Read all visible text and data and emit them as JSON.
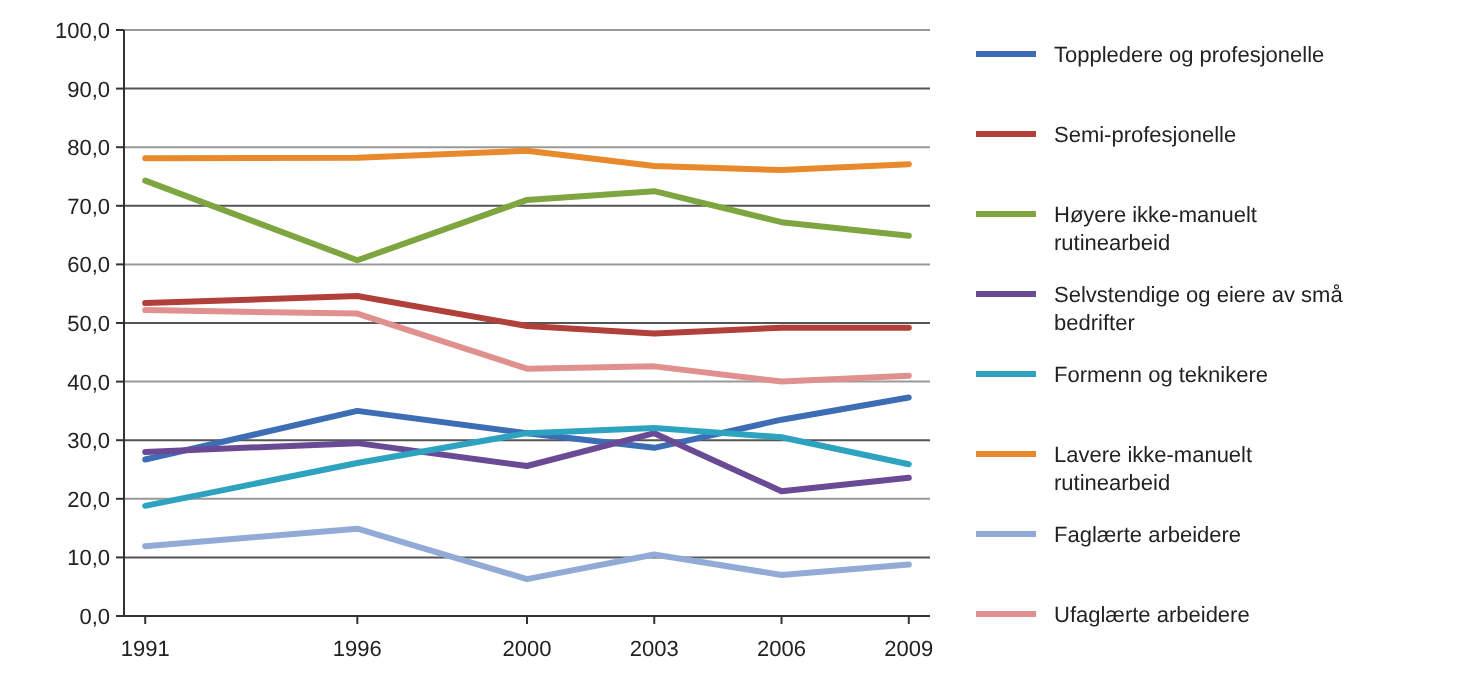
{
  "chart_data": {
    "type": "line",
    "x": [
      1991,
      1996,
      2000,
      2003,
      2006,
      2009
    ],
    "xlim": [
      1990.5,
      2009.5
    ],
    "xticks": [
      1991,
      1996,
      2000,
      2003,
      2006,
      2009
    ],
    "ylim": [
      0,
      100
    ],
    "yticks": [
      {
        "value": 0,
        "label": "0,0"
      },
      {
        "value": 10,
        "label": "10,0"
      },
      {
        "value": 20,
        "label": "20,0"
      },
      {
        "value": 30,
        "label": "30,0"
      },
      {
        "value": 40,
        "label": "40,0"
      },
      {
        "value": 50,
        "label": "50,0"
      },
      {
        "value": 60,
        "label": "60,0"
      },
      {
        "value": 70,
        "label": "70,0"
      },
      {
        "value": 80,
        "label": "80,0"
      },
      {
        "value": 90,
        "label": "90,0"
      },
      {
        "value": 100,
        "label": "100,0"
      }
    ],
    "grid": "y",
    "legend": "right",
    "marker": "none",
    "line_style": "solid",
    "series": [
      {
        "name": "Toppledere og profesjonelle",
        "color": "#3d6db5",
        "values": [
          26.7,
          35.0,
          31.2,
          28.7,
          33.5,
          37.3
        ]
      },
      {
        "name": "Semi-profesjonelle",
        "color": "#b13f3a",
        "values": [
          53.4,
          54.6,
          49.5,
          48.2,
          49.2,
          49.2
        ]
      },
      {
        "name": "Høyere ikke-manuelt rutinearbeid",
        "color": "#7fa540",
        "values": [
          74.3,
          60.7,
          71.0,
          72.5,
          67.2,
          64.9
        ]
      },
      {
        "name": "Selvstendige og eiere av små bedrifter",
        "color": "#6a4a94",
        "values": [
          28.0,
          29.5,
          25.6,
          31.2,
          21.3,
          23.6
        ]
      },
      {
        "name": "Formenn og teknikere",
        "color": "#2ea3bf",
        "values": [
          18.8,
          26.1,
          31.2,
          32.1,
          30.5,
          25.9
        ]
      },
      {
        "name": "Lavere ikke-manuelt rutinearbeid",
        "color": "#e8892c",
        "values": [
          78.1,
          78.2,
          79.4,
          76.8,
          76.1,
          77.1
        ]
      },
      {
        "name": "Faglærte arbeidere",
        "color": "#92abd6",
        "values": [
          11.9,
          14.9,
          6.3,
          10.5,
          7.0,
          8.8
        ]
      },
      {
        "name": "Ufaglærte arbeidere",
        "color": "#e0918f",
        "values": [
          52.2,
          51.6,
          42.2,
          42.6,
          40.0,
          41.0
        ]
      }
    ]
  }
}
